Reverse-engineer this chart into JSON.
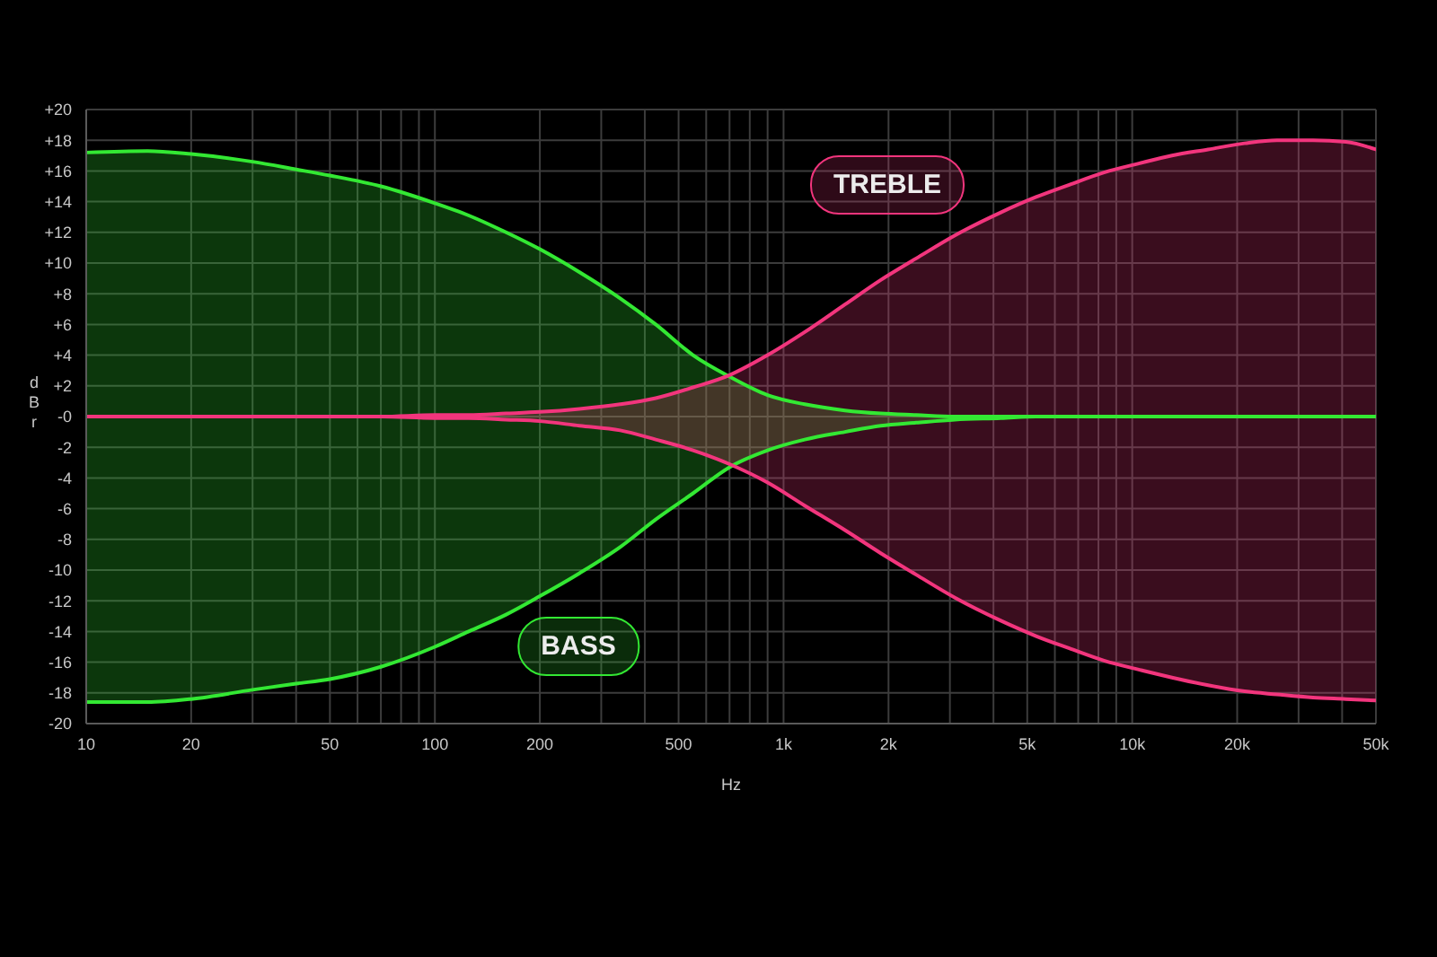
{
  "chart_data": {
    "type": "line",
    "xlabel": "Hz",
    "ylabel": "dBr",
    "log": "x",
    "grid": true,
    "xlim": [
      10,
      50000
    ],
    "ylim": [
      -20,
      20
    ],
    "xticks": [
      10,
      20,
      {
        "value": 30,
        "label": null
      },
      {
        "value": 40,
        "label": null
      },
      50,
      {
        "value": 60,
        "label": null
      },
      {
        "value": 70,
        "label": null
      },
      {
        "value": 80,
        "label": null
      },
      {
        "value": 90,
        "label": null
      },
      100,
      200,
      {
        "value": 300,
        "label": null
      },
      {
        "value": 400,
        "label": null
      },
      500,
      {
        "value": 600,
        "label": null
      },
      {
        "value": 700,
        "label": null
      },
      {
        "value": 800,
        "label": null
      },
      {
        "value": 900,
        "label": null
      },
      {
        "value": 1000,
        "label": "1k"
      },
      {
        "value": 2000,
        "label": "2k"
      },
      {
        "value": 3000,
        "label": null
      },
      {
        "value": 4000,
        "label": null
      },
      {
        "value": 5000,
        "label": "5k"
      },
      {
        "value": 6000,
        "label": null
      },
      {
        "value": 7000,
        "label": null
      },
      {
        "value": 8000,
        "label": null
      },
      {
        "value": 9000,
        "label": null
      },
      {
        "value": 10000,
        "label": "10k"
      },
      {
        "value": 20000,
        "label": "20k"
      },
      {
        "value": 30000,
        "label": null
      },
      {
        "value": 40000,
        "label": null
      },
      {
        "value": 50000,
        "label": "50k"
      }
    ],
    "yticks": [
      {
        "value": 20,
        "label": "+20"
      },
      {
        "value": 18,
        "label": "+18"
      },
      {
        "value": 16,
        "label": "+16"
      },
      {
        "value": 14,
        "label": "+14"
      },
      {
        "value": 12,
        "label": "+12"
      },
      {
        "value": 10,
        "label": "+10"
      },
      {
        "value": 8,
        "label": "+8"
      },
      {
        "value": 6,
        "label": "+6"
      },
      {
        "value": 4,
        "label": "+4"
      },
      {
        "value": 2,
        "label": "+2"
      },
      {
        "value": 0,
        "label": "-0"
      },
      -2,
      -4,
      -6,
      -8,
      -10,
      -12,
      -14,
      -16,
      -18,
      -20
    ],
    "x": [
      10,
      15,
      20,
      30,
      40,
      50,
      70,
      100,
      125,
      160,
      200,
      260,
      340,
      430,
      550,
      700,
      900,
      1150,
      1500,
      1900,
      2400,
      3100,
      4200,
      5300,
      6600,
      8300,
      10500,
      13000,
      16500,
      21000,
      26000,
      33000,
      41000,
      50000
    ],
    "series": [
      {
        "color": "#33e833",
        "values": [
          17.2,
          17.3,
          17.1,
          16.6,
          16.1,
          15.7,
          15.0,
          13.9,
          13.1,
          12.0,
          10.9,
          9.4,
          7.7,
          6.0,
          4.0,
          2.6,
          1.4,
          0.8,
          0.4,
          0.2,
          0.1,
          0,
          0,
          0,
          0,
          0,
          0,
          0,
          0,
          0,
          0,
          0,
          0,
          0
        ]
      },
      {
        "name": "BASS",
        "color": "#33e833",
        "values": [
          -18.6,
          -18.6,
          -18.4,
          -17.8,
          -17.4,
          -17.1,
          -16.3,
          -15.0,
          -14.0,
          -12.9,
          -11.7,
          -10.2,
          -8.5,
          -6.7,
          -5.0,
          -3.3,
          -2.2,
          -1.5,
          -1.0,
          -0.6,
          -0.4,
          -0.2,
          -0.1,
          0,
          0,
          0,
          0,
          0,
          0,
          0,
          0,
          0,
          0,
          0
        ],
        "lower": [
          -18.6,
          -18.6,
          -18.4,
          -17.8,
          -17.4,
          -17.1,
          -16.3,
          -15.0,
          -14.0,
          -12.9,
          -11.7,
          -10.2,
          -8.5,
          -6.7,
          -5.0,
          -3.3,
          -2.2,
          -1.5,
          -1.0,
          -0.6,
          -0.4,
          -0.2,
          -0.1,
          0,
          0,
          0,
          0,
          0,
          0,
          0,
          0,
          0,
          0,
          0
        ],
        "upper": [
          17.2,
          17.3,
          17.1,
          16.6,
          16.1,
          15.7,
          15.0,
          13.9,
          13.1,
          12.0,
          10.9,
          9.4,
          7.7,
          6.0,
          4.0,
          2.6,
          1.4,
          0.8,
          0.4,
          0.2,
          0.1,
          0,
          0,
          0,
          0,
          0,
          0,
          0,
          0,
          0,
          0,
          0,
          0,
          0
        ]
      },
      {
        "name": "TREBLE",
        "color": "#f2357d",
        "values": [
          0,
          0,
          0,
          0,
          0,
          0,
          0,
          0.1,
          0.1,
          0.2,
          0.3,
          0.5,
          0.8,
          1.2,
          1.9,
          2.7,
          4.0,
          5.5,
          7.3,
          8.9,
          10.3,
          11.8,
          13.3,
          14.3,
          15.1,
          15.9,
          16.5,
          17.0,
          17.4,
          17.8,
          18.0,
          18.0,
          17.9,
          17.4
        ],
        "lower": [
          0,
          0,
          0,
          0,
          0,
          0,
          0,
          -0.1,
          -0.1,
          -0.2,
          -0.3,
          -0.6,
          -0.9,
          -1.5,
          -2.2,
          -3.1,
          -4.3,
          -5.8,
          -7.4,
          -8.9,
          -10.3,
          -11.8,
          -13.3,
          -14.3,
          -15.1,
          -15.9,
          -16.5,
          -17.0,
          -17.5,
          -17.9,
          -18.1,
          -18.3,
          -18.4,
          -18.5
        ],
        "upper": [
          0,
          0,
          0,
          0,
          0,
          0,
          0,
          0.1,
          0.1,
          0.2,
          0.3,
          0.5,
          0.8,
          1.2,
          1.9,
          2.7,
          4.0,
          5.5,
          7.3,
          8.9,
          10.3,
          11.8,
          13.3,
          14.3,
          15.1,
          15.9,
          16.5,
          17.0,
          17.4,
          17.8,
          18.0,
          18.0,
          17.9,
          17.4
        ]
      },
      {
        "color": "#f2357d",
        "values": [
          0,
          0,
          0,
          0,
          0,
          0,
          0,
          -0.1,
          -0.1,
          -0.2,
          -0.3,
          -0.6,
          -0.9,
          -1.5,
          -2.2,
          -3.1,
          -4.3,
          -5.8,
          -7.4,
          -8.9,
          -10.3,
          -11.8,
          -13.3,
          -14.3,
          -15.1,
          -15.9,
          -16.5,
          -17.0,
          -17.5,
          -17.9,
          -18.1,
          -18.3,
          -18.4,
          -18.5
        ]
      }
    ]
  }
}
